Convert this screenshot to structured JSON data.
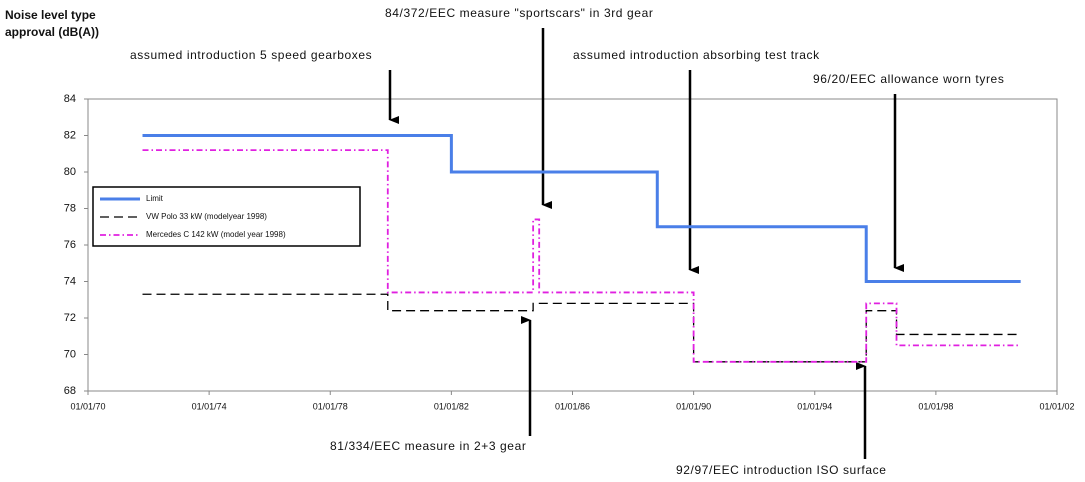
{
  "chart_data": {
    "type": "line",
    "step": "post",
    "ylabel": [
      "Noise level type",
      "approval (dB(A))"
    ],
    "xlim": [
      1970,
      2002
    ],
    "xticks": [
      {
        "value": 1970,
        "label": "01/01/70"
      },
      {
        "value": 1974,
        "label": "01/01/74"
      },
      {
        "value": 1978,
        "label": "01/01/78"
      },
      {
        "value": 1982,
        "label": "01/01/82"
      },
      {
        "value": 1986,
        "label": "01/01/86"
      },
      {
        "value": 1990,
        "label": "01/01/90"
      },
      {
        "value": 1994,
        "label": "01/01/94"
      },
      {
        "value": 1998,
        "label": "01/01/98"
      },
      {
        "value": 2002,
        "label": "01/01/02"
      }
    ],
    "ylim": [
      68,
      84
    ],
    "yticks": [
      68,
      70,
      72,
      74,
      76,
      78,
      80,
      82,
      84
    ],
    "legend": "left",
    "series": [
      {
        "name": "Limit",
        "color": "#4a7fe8",
        "dash": "solid",
        "x": [
          1971.8,
          1982.0,
          1988.8,
          1995.7,
          2000.8
        ],
        "values": [
          82,
          80,
          77,
          74,
          74
        ]
      },
      {
        "name": "VW Polo 33 kW (modelyear 1998)",
        "color": "#000000",
        "dash": "dashed",
        "x": [
          1971.8,
          1979.9,
          1984.7,
          1990.0,
          1995.7,
          1996.7,
          2000.8
        ],
        "values": [
          73.3,
          72.4,
          72.8,
          69.6,
          72.4,
          71.1,
          71.1
        ]
      },
      {
        "name": "Mercedes C 142 kW (model year 1998)",
        "color": "#e020e0",
        "dash": "dashdot",
        "x": [
          1971.8,
          1979.9,
          1984.7,
          1984.9,
          1990.0,
          1995.7,
          1996.7,
          2000.8
        ],
        "values": [
          81.2,
          73.4,
          77.4,
          73.4,
          69.6,
          72.8,
          70.5,
          70.5
        ]
      }
    ],
    "annotations": [
      "assumed introduction 5 speed gearboxes",
      "84/372/EEC measure \"sportscars\" in 3rd gear",
      "assumed introduction absorbing test track",
      "96/20/EEC allowance worn tyres",
      "81/334/EEC measure in 2+3 gear",
      "92/97/EEC introduction ISO surface"
    ]
  }
}
